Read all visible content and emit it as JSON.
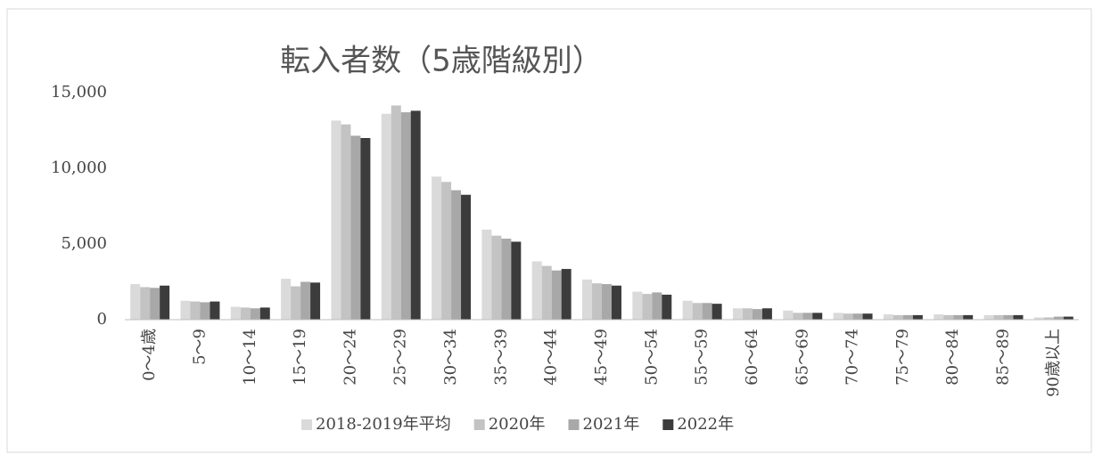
{
  "chart_data": {
    "type": "bar",
    "title": "転入者数（5歳階級別）",
    "categories": [
      "0～4歳",
      "5～9",
      "10～14",
      "15～19",
      "20～24",
      "25～29",
      "30～34",
      "35～39",
      "40～44",
      "45～49",
      "50～54",
      "55～59",
      "60～64",
      "65～69",
      "70～74",
      "75～79",
      "80～84",
      "85～89",
      "90歳以上"
    ],
    "series": [
      {
        "name": "2018-2019年平均",
        "color": "#dadada",
        "values": [
          2350,
          1250,
          850,
          2700,
          13150,
          13600,
          9450,
          5950,
          3850,
          2650,
          1850,
          1250,
          750,
          600,
          450,
          350,
          350,
          300,
          150
        ]
      },
      {
        "name": "2020年",
        "color": "#c3c3c3",
        "values": [
          2150,
          1200,
          800,
          2200,
          12900,
          14150,
          9100,
          5550,
          3550,
          2400,
          1700,
          1100,
          750,
          450,
          400,
          300,
          300,
          300,
          150
        ]
      },
      {
        "name": "2021年",
        "color": "#a8a8a8",
        "values": [
          2100,
          1150,
          750,
          2500,
          12150,
          13700,
          8550,
          5350,
          3250,
          2350,
          1800,
          1100,
          700,
          450,
          400,
          300,
          300,
          300,
          200
        ]
      },
      {
        "name": "2022年",
        "color": "#3c3c3c",
        "values": [
          2250,
          1200,
          800,
          2450,
          12000,
          13800,
          8250,
          5150,
          3350,
          2250,
          1650,
          1050,
          750,
          450,
          400,
          300,
          300,
          300,
          200
        ]
      }
    ],
    "ylim": [
      0,
      15000
    ],
    "yticks": [
      0,
      {
        "value": 5000,
        "label": "5,000"
      },
      {
        "value": 10000,
        "label": "10,000"
      },
      {
        "value": 15000,
        "label": "15,000"
      }
    ],
    "grid": false,
    "legend": "bottom"
  }
}
